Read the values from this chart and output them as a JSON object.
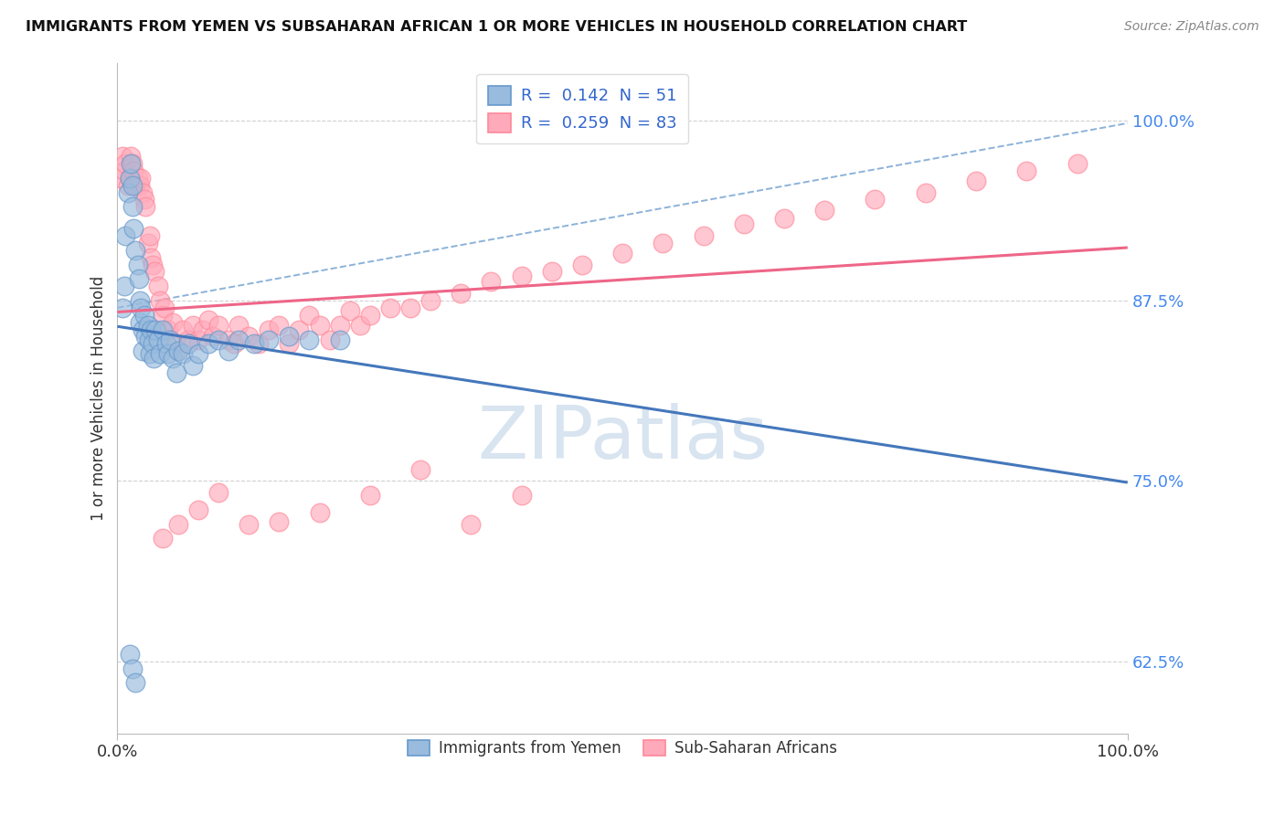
{
  "title": "IMMIGRANTS FROM YEMEN VS SUBSAHARAN AFRICAN 1 OR MORE VEHICLES IN HOUSEHOLD CORRELATION CHART",
  "source": "Source: ZipAtlas.com",
  "ylabel": "1 or more Vehicles in Household",
  "legend_labels": [
    "Immigrants from Yemen",
    "Sub-Saharan Africans"
  ],
  "R_blue": 0.142,
  "N_blue": 51,
  "R_pink": 0.259,
  "N_pink": 83,
  "color_blue_fill": "#99BBDD",
  "color_blue_edge": "#6699CC",
  "color_pink_fill": "#FFAABB",
  "color_pink_edge": "#FF8899",
  "color_blue_line": "#4477BB",
  "color_pink_line": "#EE6688",
  "xlim": [
    0.0,
    1.0
  ],
  "ylim": [
    0.575,
    1.04
  ],
  "yticks": [
    0.625,
    0.75,
    0.875,
    1.0
  ],
  "ytick_labels": [
    "62.5%",
    "75.0%",
    "87.5%",
    "100.0%"
  ],
  "xticks": [
    0.0,
    1.0
  ],
  "xtick_labels": [
    "0.0%",
    "100.0%"
  ],
  "watermark": "ZIPatlas",
  "blue_x": [
    0.005,
    0.007,
    0.008,
    0.01,
    0.012,
    0.013,
    0.015,
    0.015,
    0.016,
    0.018,
    0.02,
    0.021,
    0.022,
    0.022,
    0.023,
    0.025,
    0.025,
    0.027,
    0.028,
    0.03,
    0.031,
    0.032,
    0.033,
    0.035,
    0.036,
    0.038,
    0.04,
    0.042,
    0.045,
    0.048,
    0.05,
    0.052,
    0.055,
    0.058,
    0.06,
    0.065,
    0.07,
    0.075,
    0.08,
    0.09,
    0.1,
    0.11,
    0.12,
    0.135,
    0.15,
    0.17,
    0.19,
    0.22,
    0.012,
    0.015,
    0.018
  ],
  "blue_y": [
    0.87,
    0.885,
    0.92,
    0.95,
    0.96,
    0.97,
    0.955,
    0.94,
    0.925,
    0.91,
    0.9,
    0.89,
    0.875,
    0.86,
    0.87,
    0.855,
    0.84,
    0.865,
    0.85,
    0.858,
    0.848,
    0.838,
    0.855,
    0.845,
    0.835,
    0.855,
    0.848,
    0.838,
    0.855,
    0.845,
    0.838,
    0.848,
    0.835,
    0.825,
    0.84,
    0.838,
    0.845,
    0.83,
    0.838,
    0.845,
    0.848,
    0.84,
    0.848,
    0.845,
    0.848,
    0.85,
    0.848,
    0.848,
    0.63,
    0.62,
    0.61
  ],
  "pink_x": [
    0.003,
    0.005,
    0.007,
    0.008,
    0.01,
    0.012,
    0.013,
    0.015,
    0.016,
    0.018,
    0.02,
    0.022,
    0.023,
    0.025,
    0.027,
    0.028,
    0.03,
    0.032,
    0.033,
    0.035,
    0.037,
    0.04,
    0.042,
    0.045,
    0.047,
    0.05,
    0.055,
    0.058,
    0.06,
    0.065,
    0.07,
    0.075,
    0.08,
    0.085,
    0.09,
    0.095,
    0.1,
    0.11,
    0.115,
    0.12,
    0.13,
    0.14,
    0.15,
    0.16,
    0.17,
    0.18,
    0.19,
    0.2,
    0.21,
    0.22,
    0.23,
    0.24,
    0.25,
    0.27,
    0.29,
    0.31,
    0.34,
    0.37,
    0.4,
    0.43,
    0.46,
    0.5,
    0.54,
    0.58,
    0.62,
    0.66,
    0.7,
    0.75,
    0.8,
    0.85,
    0.9,
    0.95,
    0.045,
    0.06,
    0.08,
    0.1,
    0.13,
    0.16,
    0.2,
    0.25,
    0.3,
    0.35,
    0.4
  ],
  "pink_y": [
    0.96,
    0.975,
    0.965,
    0.97,
    0.955,
    0.96,
    0.975,
    0.97,
    0.965,
    0.955,
    0.96,
    0.955,
    0.96,
    0.95,
    0.945,
    0.94,
    0.915,
    0.92,
    0.905,
    0.9,
    0.895,
    0.885,
    0.875,
    0.865,
    0.87,
    0.855,
    0.86,
    0.845,
    0.84,
    0.855,
    0.848,
    0.858,
    0.848,
    0.855,
    0.862,
    0.85,
    0.858,
    0.848,
    0.845,
    0.858,
    0.85,
    0.845,
    0.855,
    0.858,
    0.845,
    0.855,
    0.865,
    0.858,
    0.848,
    0.858,
    0.868,
    0.858,
    0.865,
    0.87,
    0.87,
    0.875,
    0.88,
    0.888,
    0.892,
    0.895,
    0.9,
    0.908,
    0.915,
    0.92,
    0.928,
    0.932,
    0.938,
    0.945,
    0.95,
    0.958,
    0.965,
    0.97,
    0.71,
    0.72,
    0.73,
    0.742,
    0.72,
    0.722,
    0.728,
    0.74,
    0.758,
    0.72,
    0.74
  ]
}
